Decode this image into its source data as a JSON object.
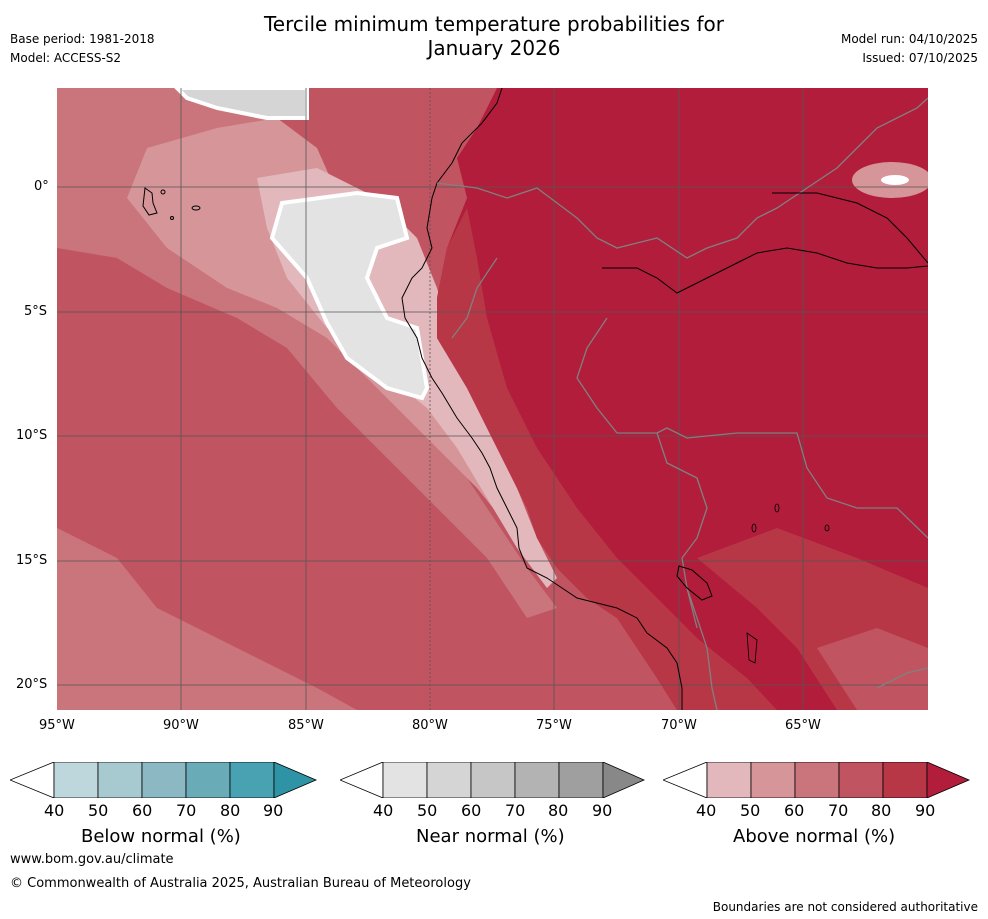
{
  "header": {
    "title_line1": "Tercile minimum temperature probabilities for",
    "title_line2": "January 2026",
    "base_period": "Base period: 1981-2018",
    "model": "Model: ACCESS-S2",
    "model_run": "Model run: 04/10/2025",
    "issued": "Issued: 07/10/2025"
  },
  "map": {
    "region": "Western South America and Eastern Pacific",
    "lon_ticks": [
      "95°W",
      "90°W",
      "85°W",
      "80°W",
      "75°W",
      "70°W",
      "65°W"
    ],
    "lat_ticks": [
      "0°",
      "5°S",
      "10°S",
      "15°S",
      "20°S"
    ],
    "lon_range": [
      -95,
      -60
    ],
    "lat_range": [
      -21,
      4
    ]
  },
  "colorbars": [
    {
      "label": "Below normal (%)",
      "ticks": [
        "40",
        "50",
        "60",
        "70",
        "80",
        "90"
      ],
      "colors": [
        "#ffffff",
        "#bdd7dd",
        "#a7c9d0",
        "#8bb8c3",
        "#6aabb8",
        "#48a2b2",
        "#2f93a6"
      ]
    },
    {
      "label": "Near normal (%)",
      "ticks": [
        "40",
        "50",
        "60",
        "70",
        "80",
        "90"
      ],
      "colors": [
        "#ffffff",
        "#e3e3e3",
        "#d5d5d5",
        "#c6c6c6",
        "#b3b3b3",
        "#9f9f9f",
        "#888888"
      ]
    },
    {
      "label": "Above normal (%)",
      "ticks": [
        "40",
        "50",
        "60",
        "70",
        "80",
        "90"
      ],
      "colors": [
        "#ffffff",
        "#e2b8bc",
        "#d69599",
        "#ca747c",
        "#c05561",
        "#b83746",
        "#b11d3b"
      ]
    }
  ],
  "footer": {
    "url": "www.bom.gov.au/climate",
    "copyright": "© Commonwealth of Australia 2025, Australian Bureau of Meteorology",
    "disclaimer": "Boundaries are not considered authoritative"
  },
  "colors": {
    "above_90": "#b11d3b",
    "above_80": "#b83746",
    "above_70": "#c05561",
    "above_60": "#ca747c",
    "above_50": "#d69599",
    "above_40": "#e2b8bc",
    "near_50": "#e3e3e3",
    "near_60": "#d5d5d5"
  }
}
